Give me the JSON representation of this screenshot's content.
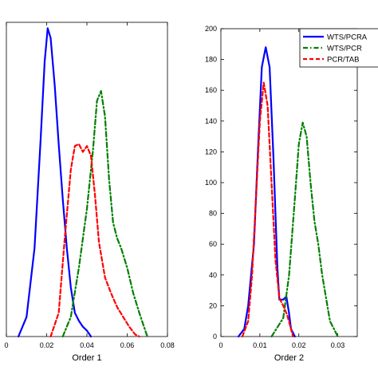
{
  "chart_data": [
    {
      "type": "line",
      "title": "",
      "xlabel": "Order 1",
      "ylabel": "",
      "xlim": [
        0,
        0.08
      ],
      "ylim": [
        0,
        160
      ],
      "x_ticks": [
        "0",
        "0.02",
        "0.04",
        "0.06",
        "0.08"
      ],
      "y_ticks": [],
      "grid": false,
      "series": [
        {
          "name": "WTS/PCRA",
          "color": "#0000ff",
          "style": "solid",
          "x": [
            0.006,
            0.01,
            0.014,
            0.017,
            0.019,
            0.0205,
            0.022,
            0.024,
            0.026,
            0.028,
            0.03,
            0.032,
            0.034,
            0.036,
            0.038,
            0.04,
            0.042
          ],
          "y": [
            0,
            10,
            45,
            100,
            140,
            157,
            152,
            128,
            98,
            70,
            45,
            25,
            12,
            8,
            5,
            3,
            0
          ]
        },
        {
          "name": "WTS/PCR",
          "color": "#008000",
          "style": "dashdot",
          "x": [
            0.028,
            0.032,
            0.036,
            0.04,
            0.043,
            0.045,
            0.047,
            0.049,
            0.051,
            0.053,
            0.055,
            0.057,
            0.06,
            0.063,
            0.066,
            0.069,
            0.07
          ],
          "y": [
            0,
            10,
            35,
            65,
            95,
            120,
            125,
            112,
            80,
            58,
            50,
            45,
            35,
            22,
            12,
            3,
            0
          ]
        },
        {
          "name": "PCR/TAB",
          "color": "#ff0000",
          "style": "dashed",
          "x": [
            0.022,
            0.026,
            0.029,
            0.032,
            0.034,
            0.036,
            0.038,
            0.04,
            0.042,
            0.044,
            0.046,
            0.049,
            0.052,
            0.055,
            0.058,
            0.061,
            0.064,
            0.066
          ],
          "y": [
            0,
            12,
            50,
            85,
            97,
            98,
            94,
            97,
            92,
            72,
            48,
            30,
            22,
            15,
            10,
            5,
            1,
            0
          ]
        }
      ]
    },
    {
      "type": "line",
      "title": "",
      "xlabel": "Order 2",
      "ylabel": "",
      "xlim": [
        0,
        0.035
      ],
      "ylim": [
        0,
        200
      ],
      "x_ticks": [
        "0",
        "0.01",
        "0.02",
        "0.03"
      ],
      "y_ticks": [
        "0",
        "20",
        "40",
        "60",
        "80",
        "100",
        "120",
        "140",
        "160",
        "180",
        "200"
      ],
      "grid": false,
      "legend": {
        "placement": "top-right",
        "entries": [
          "WTS/PCRA",
          "WTS/PCR",
          "PCR/TAB"
        ]
      },
      "series": [
        {
          "name": "WTS/PCRA",
          "color": "#0000ff",
          "style": "solid",
          "x": [
            0.0045,
            0.006,
            0.007,
            0.0085,
            0.0095,
            0.0105,
            0.0115,
            0.0125,
            0.0135,
            0.0145,
            0.015,
            0.016,
            0.0168,
            0.0175,
            0.018,
            0.019
          ],
          "y": [
            0,
            5,
            20,
            60,
            120,
            175,
            188,
            175,
            115,
            45,
            24,
            24,
            26,
            15,
            5,
            0
          ]
        },
        {
          "name": "WTS/PCR",
          "color": "#008000",
          "style": "dashdot",
          "x": [
            0.013,
            0.016,
            0.0175,
            0.019,
            0.02,
            0.021,
            0.022,
            0.023,
            0.024,
            0.025,
            0.026,
            0.027,
            0.028,
            0.03
          ],
          "y": [
            0,
            12,
            40,
            90,
            125,
            139,
            130,
            100,
            75,
            60,
            40,
            25,
            10,
            0
          ]
        },
        {
          "name": "PCR/TAB",
          "color": "#ff0000",
          "style": "dashed",
          "x": [
            0.0055,
            0.007,
            0.008,
            0.009,
            0.01,
            0.011,
            0.012,
            0.013,
            0.014,
            0.015,
            0.016,
            0.017,
            0.018,
            0.0185
          ],
          "y": [
            0,
            10,
            40,
            90,
            140,
            165,
            150,
            100,
            50,
            25,
            20,
            14,
            5,
            0
          ]
        }
      ]
    }
  ]
}
